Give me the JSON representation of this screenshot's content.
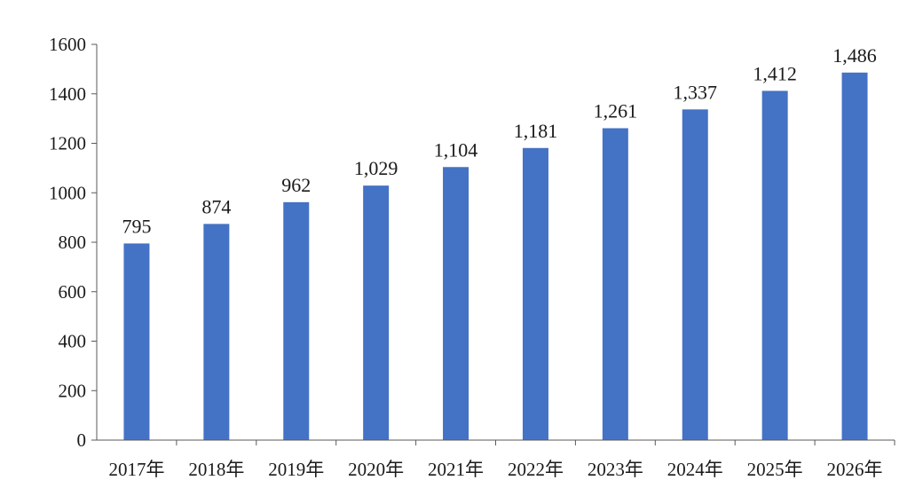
{
  "chart_data": {
    "type": "bar",
    "categories": [
      "2017年",
      "2018年",
      "2019年",
      "2020年",
      "2021年",
      "2022年",
      "2023年",
      "2024年",
      "2025年",
      "2026年"
    ],
    "values": [
      795,
      874,
      962,
      1029,
      1104,
      1181,
      1261,
      1337,
      1412,
      1486
    ],
    "data_labels": [
      "795",
      "874",
      "962",
      "1,029",
      "1,104",
      "1,181",
      "1,261",
      "1,337",
      "1,412",
      "1,486"
    ],
    "y_ticks": [
      "0",
      "200",
      "400",
      "600",
      "800",
      "1000",
      "1200",
      "1400",
      "1600"
    ],
    "ylim": [
      0,
      1600
    ],
    "title": "",
    "xlabel": "",
    "ylabel": "",
    "grid": false,
    "legend": "none",
    "bar_color": "#4472C4",
    "axis_color": "#595959"
  }
}
